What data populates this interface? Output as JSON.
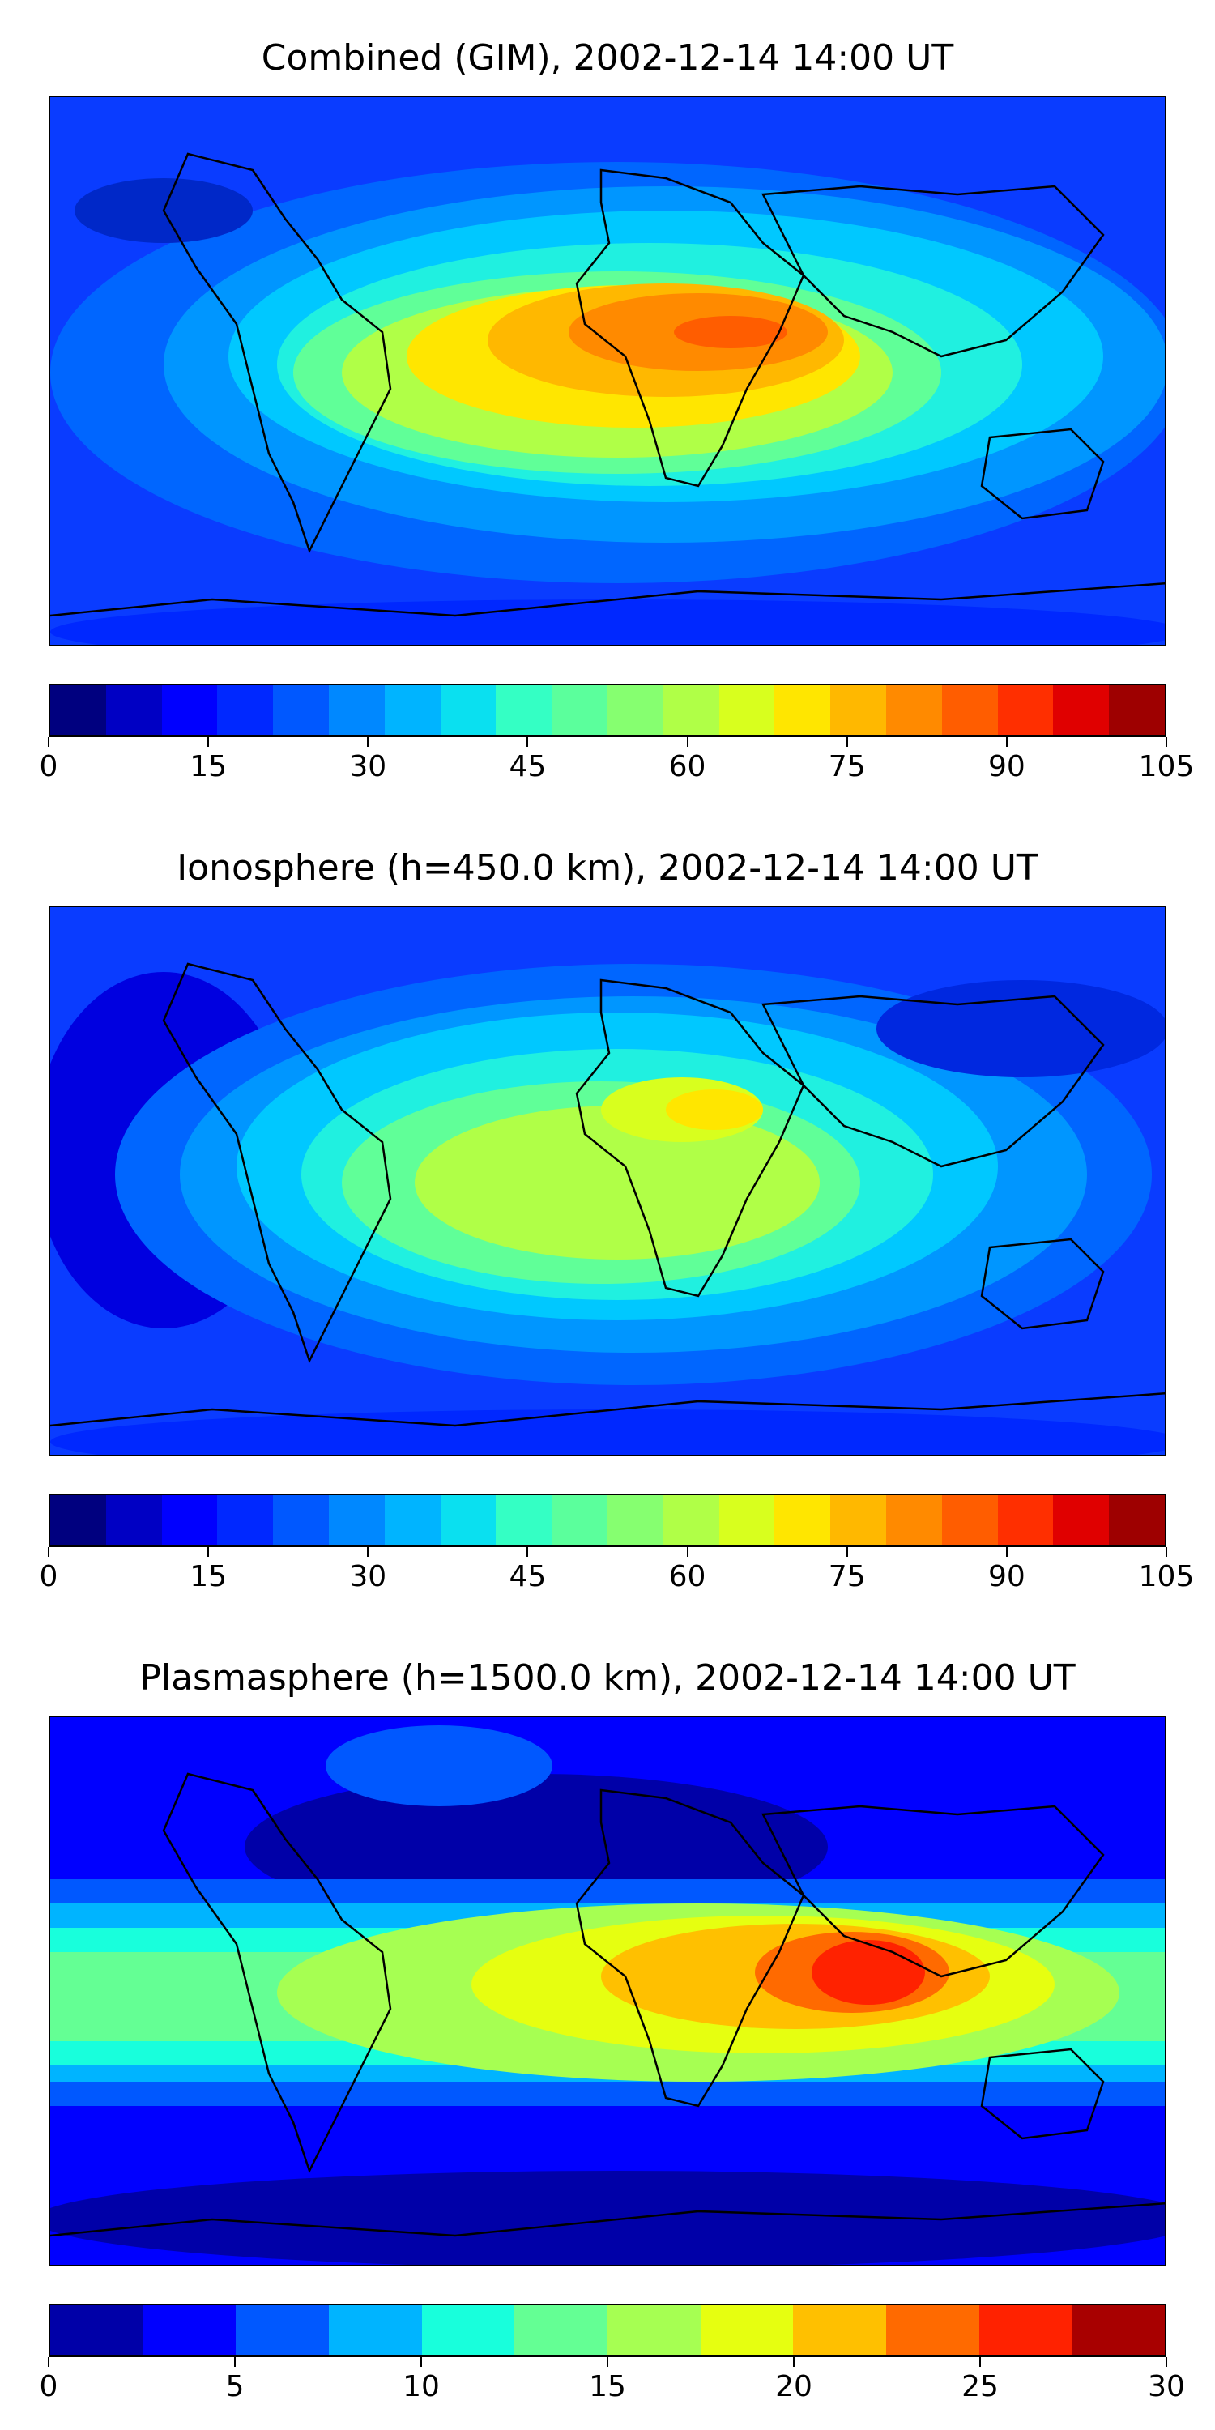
{
  "panels": [
    {
      "title": "Combined (GIM), 2002-12-14 14:00 UT",
      "colorbar": {
        "ticks": [
          "0",
          "15",
          "30",
          "45",
          "60",
          "75",
          "90",
          "105"
        ],
        "colors": [
          "#00007f",
          "#0000c4",
          "#0000ff",
          "#0028ff",
          "#0058ff",
          "#0088ff",
          "#00b4ff",
          "#0ae0f0",
          "#34ffc4",
          "#5bff9c",
          "#86ff70",
          "#b0ff47",
          "#d8ff1e",
          "#ffe600",
          "#ffb800",
          "#ff8a00",
          "#ff5d00",
          "#ff2f00",
          "#e00000",
          "#9e0000"
        ]
      }
    },
    {
      "title": "Ionosphere  (h=450.0 km), 2002-12-14 14:00 UT",
      "colorbar": {
        "ticks": [
          "0",
          "15",
          "30",
          "45",
          "60",
          "75",
          "90",
          "105"
        ],
        "colors": [
          "#00007f",
          "#0000c4",
          "#0000ff",
          "#0028ff",
          "#0058ff",
          "#0088ff",
          "#00b4ff",
          "#0ae0f0",
          "#34ffc4",
          "#5bff9c",
          "#86ff70",
          "#b0ff47",
          "#d8ff1e",
          "#ffe600",
          "#ffb800",
          "#ff8a00",
          "#ff5d00",
          "#ff2f00",
          "#e00000",
          "#9e0000"
        ]
      }
    },
    {
      "title": "Plasmasphere (h=1500.0 km), 2002-12-14 14:00 UT",
      "colorbar": {
        "ticks": [
          "0",
          "5",
          "10",
          "15",
          "20",
          "25",
          "30"
        ],
        "colors": [
          "#0000a8",
          "#0000ff",
          "#0058ff",
          "#00b4ff",
          "#18ffdc",
          "#64ff94",
          "#a6ff52",
          "#e6ff10",
          "#ffc000",
          "#ff6a00",
          "#ff2200",
          "#a80000"
        ]
      }
    }
  ]
}
